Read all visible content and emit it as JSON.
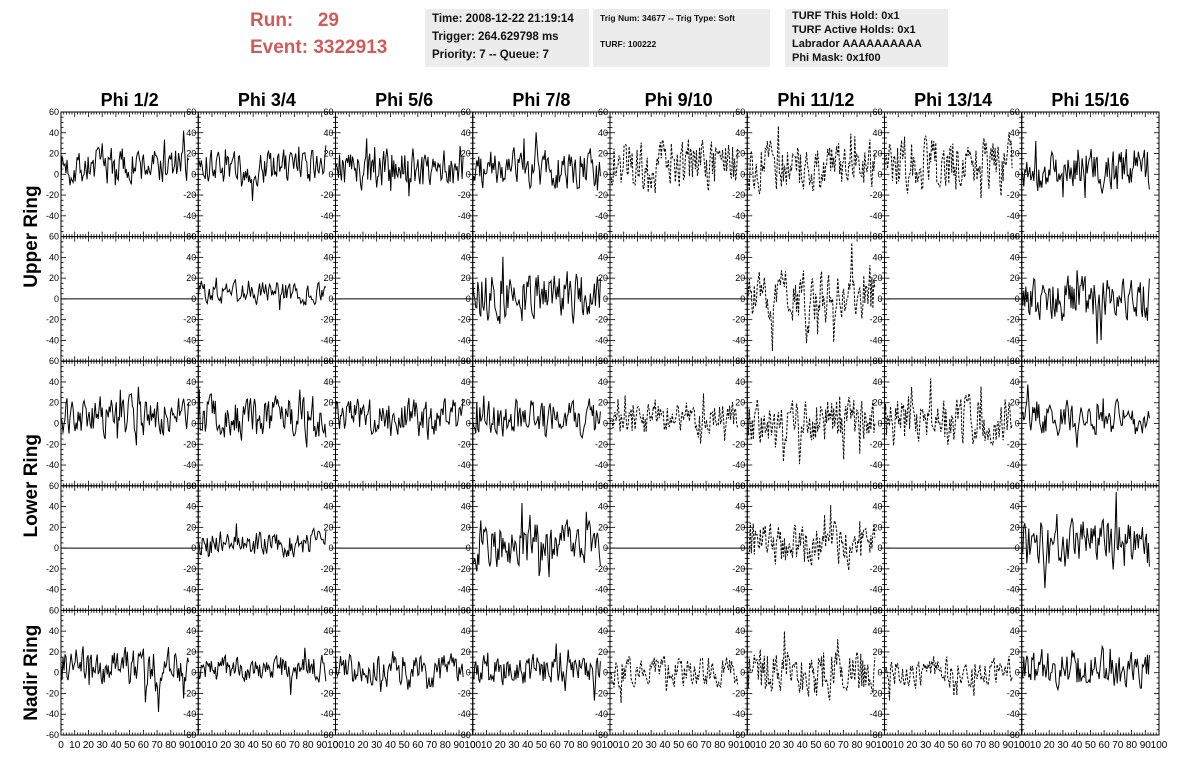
{
  "header": {
    "run_label": "Run:",
    "run_value": "29",
    "event_label": "Event:",
    "event_value": "3322913",
    "time": "Time: 2008-12-22 21:19:14",
    "trigger": "Trigger: 264.629798 ms",
    "priority": "Priority: 7 -- Queue: 7",
    "trig_num": "Trig Num: 34677 -- Trig Type: Soft",
    "turf": "TURF: 100222",
    "turf_this_hold": "TURF This Hold: 0x1",
    "turf_active_holds": "TURF Active Holds: 0x1",
    "labrador": "Labrador AAAAAAAAAA",
    "phi_mask": "Phi Mask: 0x1f00"
  },
  "colors": {
    "title_red": "#cf5b5b",
    "info_bg": "#ececec",
    "trace": "#000000"
  },
  "chart_data": {
    "type": "line",
    "columns": [
      "Phi 1/2",
      "Phi 3/4",
      "Phi 5/6",
      "Phi 7/8",
      "Phi 9/10",
      "Phi 11/12",
      "Phi 13/14",
      "Phi 15/16"
    ],
    "row_labels": [
      {
        "label": "Upper Ring",
        "rows": [
          0,
          1
        ]
      },
      {
        "label": "Lower Ring",
        "rows": [
          2,
          3
        ]
      },
      {
        "label": "Nadir Ring",
        "rows": [
          4
        ]
      }
    ],
    "xlim": [
      0,
      100
    ],
    "ylim": [
      -60,
      60
    ],
    "x_ticks": [
      "0",
      "10",
      "20",
      "30",
      "40",
      "50",
      "60",
      "70",
      "80",
      "90",
      "100"
    ],
    "y_ticks_left": [
      "60",
      "40",
      "20",
      "0",
      "-20",
      "-40"
    ],
    "y_ticks_bottom": [
      "60",
      "40",
      "20",
      "0",
      "-20",
      "-40",
      "-60"
    ],
    "sample_count": 128,
    "trace_x_max": 93,
    "panels": [
      {
        "row": 0,
        "col": 0,
        "type": "solid",
        "amp": 10,
        "offset": 8
      },
      {
        "row": 0,
        "col": 1,
        "type": "solid",
        "amp": 9,
        "offset": 7
      },
      {
        "row": 0,
        "col": 2,
        "type": "solid",
        "amp": 11,
        "offset": 5
      },
      {
        "row": 0,
        "col": 3,
        "type": "solid",
        "amp": 10,
        "offset": 5
      },
      {
        "row": 0,
        "col": 4,
        "type": "dashed",
        "amp": 14,
        "offset": 10
      },
      {
        "row": 0,
        "col": 5,
        "type": "dashed",
        "amp": 13,
        "offset": 7
      },
      {
        "row": 0,
        "col": 6,
        "type": "dashed",
        "amp": 15,
        "offset": 8
      },
      {
        "row": 0,
        "col": 7,
        "type": "solid",
        "amp": 11,
        "offset": 5
      },
      {
        "row": 1,
        "col": 0,
        "type": "flat",
        "amp": 0,
        "offset": 0
      },
      {
        "row": 1,
        "col": 1,
        "type": "solid",
        "amp": 6,
        "offset": 6
      },
      {
        "row": 1,
        "col": 2,
        "type": "flat",
        "amp": 0,
        "offset": 0
      },
      {
        "row": 1,
        "col": 3,
        "type": "solid",
        "amp": 13,
        "offset": 3
      },
      {
        "row": 1,
        "col": 4,
        "type": "flat",
        "amp": 0,
        "offset": 0
      },
      {
        "row": 1,
        "col": 5,
        "type": "dashed",
        "amp": 14,
        "offset": 3
      },
      {
        "row": 1,
        "col": 6,
        "type": "flat",
        "amp": 0,
        "offset": 0
      },
      {
        "row": 1,
        "col": 7,
        "type": "solid",
        "amp": 12,
        "offset": 0
      },
      {
        "row": 2,
        "col": 0,
        "type": "solid",
        "amp": 10,
        "offset": 7
      },
      {
        "row": 2,
        "col": 1,
        "type": "solid",
        "amp": 11,
        "offset": 5
      },
      {
        "row": 2,
        "col": 2,
        "type": "solid",
        "amp": 10,
        "offset": 5
      },
      {
        "row": 2,
        "col": 3,
        "type": "solid",
        "amp": 10,
        "offset": 4
      },
      {
        "row": 2,
        "col": 4,
        "type": "dashed",
        "amp": 9,
        "offset": 6
      },
      {
        "row": 2,
        "col": 5,
        "type": "dashed",
        "amp": 12,
        "offset": 3
      },
      {
        "row": 2,
        "col": 6,
        "type": "dashed",
        "amp": 13,
        "offset": 2
      },
      {
        "row": 2,
        "col": 7,
        "type": "solid",
        "amp": 9,
        "offset": 4
      },
      {
        "row": 3,
        "col": 0,
        "type": "flat",
        "amp": 0,
        "offset": 0
      },
      {
        "row": 3,
        "col": 1,
        "type": "solid",
        "amp": 7,
        "offset": 4
      },
      {
        "row": 3,
        "col": 2,
        "type": "flat",
        "amp": 0,
        "offset": 0
      },
      {
        "row": 3,
        "col": 3,
        "type": "solid",
        "amp": 12,
        "offset": 3
      },
      {
        "row": 3,
        "col": 4,
        "type": "flat",
        "amp": 0,
        "offset": 0
      },
      {
        "row": 3,
        "col": 5,
        "type": "dashed",
        "amp": 11,
        "offset": 2
      },
      {
        "row": 3,
        "col": 6,
        "type": "flat",
        "amp": 0,
        "offset": 0
      },
      {
        "row": 3,
        "col": 7,
        "type": "solid",
        "amp": 14,
        "offset": 2
      },
      {
        "row": 4,
        "col": 0,
        "type": "solid",
        "amp": 10,
        "offset": 5
      },
      {
        "row": 4,
        "col": 1,
        "type": "solid",
        "amp": 7,
        "offset": 4
      },
      {
        "row": 4,
        "col": 2,
        "type": "solid",
        "amp": 9,
        "offset": 3
      },
      {
        "row": 4,
        "col": 3,
        "type": "solid",
        "amp": 8,
        "offset": 3
      },
      {
        "row": 4,
        "col": 4,
        "type": "dashed",
        "amp": 8,
        "offset": 2
      },
      {
        "row": 4,
        "col": 5,
        "type": "dashed",
        "amp": 13,
        "offset": 0
      },
      {
        "row": 4,
        "col": 6,
        "type": "dashed",
        "amp": 8,
        "offset": 0
      },
      {
        "row": 4,
        "col": 7,
        "type": "solid",
        "amp": 10,
        "offset": 3
      }
    ]
  }
}
